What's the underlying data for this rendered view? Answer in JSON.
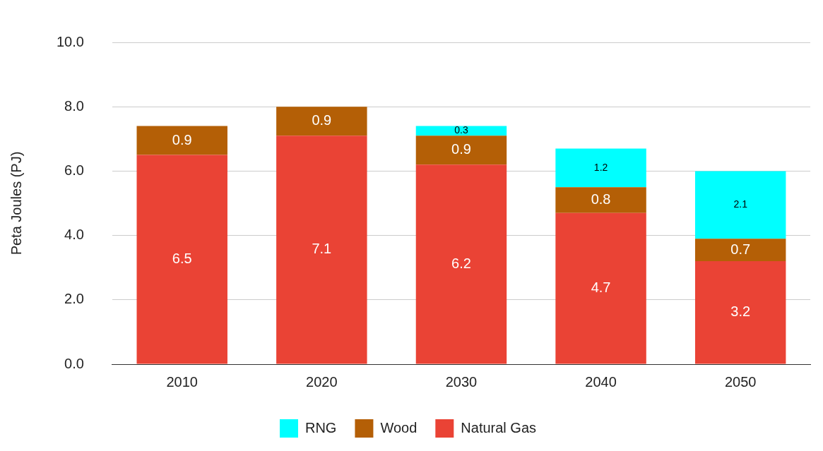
{
  "chart_data": {
    "type": "bar",
    "ylabel": "Peta Joules (PJ)",
    "categories": [
      "2010",
      "2020",
      "2030",
      "2040",
      "2050"
    ],
    "series": [
      {
        "name": "Natural Gas",
        "color": "#ea4335",
        "values": [
          6.5,
          7.1,
          6.2,
          4.7,
          3.2
        ]
      },
      {
        "name": "Wood",
        "color": "#b45f06",
        "values": [
          0.9,
          0.9,
          0.9,
          0.8,
          0.7
        ]
      },
      {
        "name": "RNG",
        "color": "#00ffff",
        "values": [
          null,
          null,
          0.3,
          1.2,
          2.1
        ]
      }
    ],
    "stacked": true,
    "data_labels": true,
    "grid": "y",
    "legend": "bottom",
    "ylim": [
      0,
      10
    ],
    "yticks": [
      {
        "value": 0,
        "label": "0.0"
      },
      {
        "value": 2,
        "label": "2.0"
      },
      {
        "value": 4,
        "label": "4.0"
      },
      {
        "value": 6,
        "label": "6.0"
      },
      {
        "value": 8,
        "label": "8.0"
      },
      {
        "value": 10,
        "label": "10.0"
      }
    ]
  }
}
